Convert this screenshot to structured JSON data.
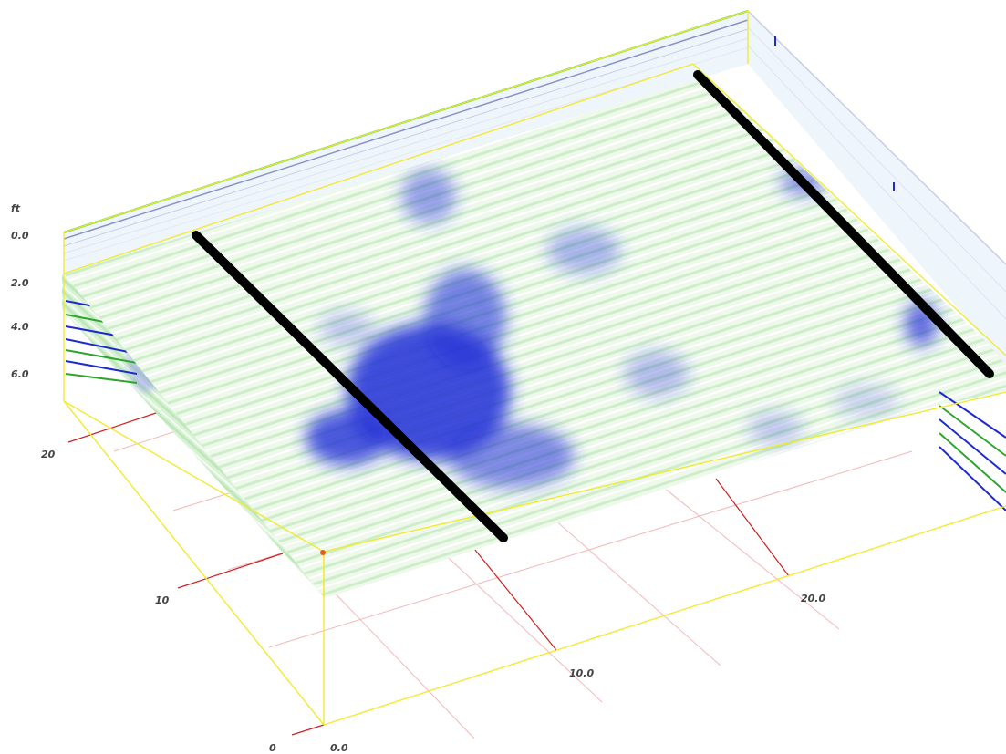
{
  "units_label": "ft",
  "depth_labels": [
    "0.0",
    "2.0",
    "4.0",
    "6.0"
  ],
  "left_axis_labels": [
    "20",
    "10",
    "0"
  ],
  "bottom_axis_labels": [
    "0.0",
    "10.0",
    "20.0"
  ],
  "colors": {
    "background": "#ffffff",
    "frame": "#f2ea30",
    "grid": "#d02020",
    "grid_light": "#f2b8b8",
    "low_amplitude": "#dff5dd",
    "high_amplitude": "#1e2ad0",
    "pipe": "#000000"
  }
}
